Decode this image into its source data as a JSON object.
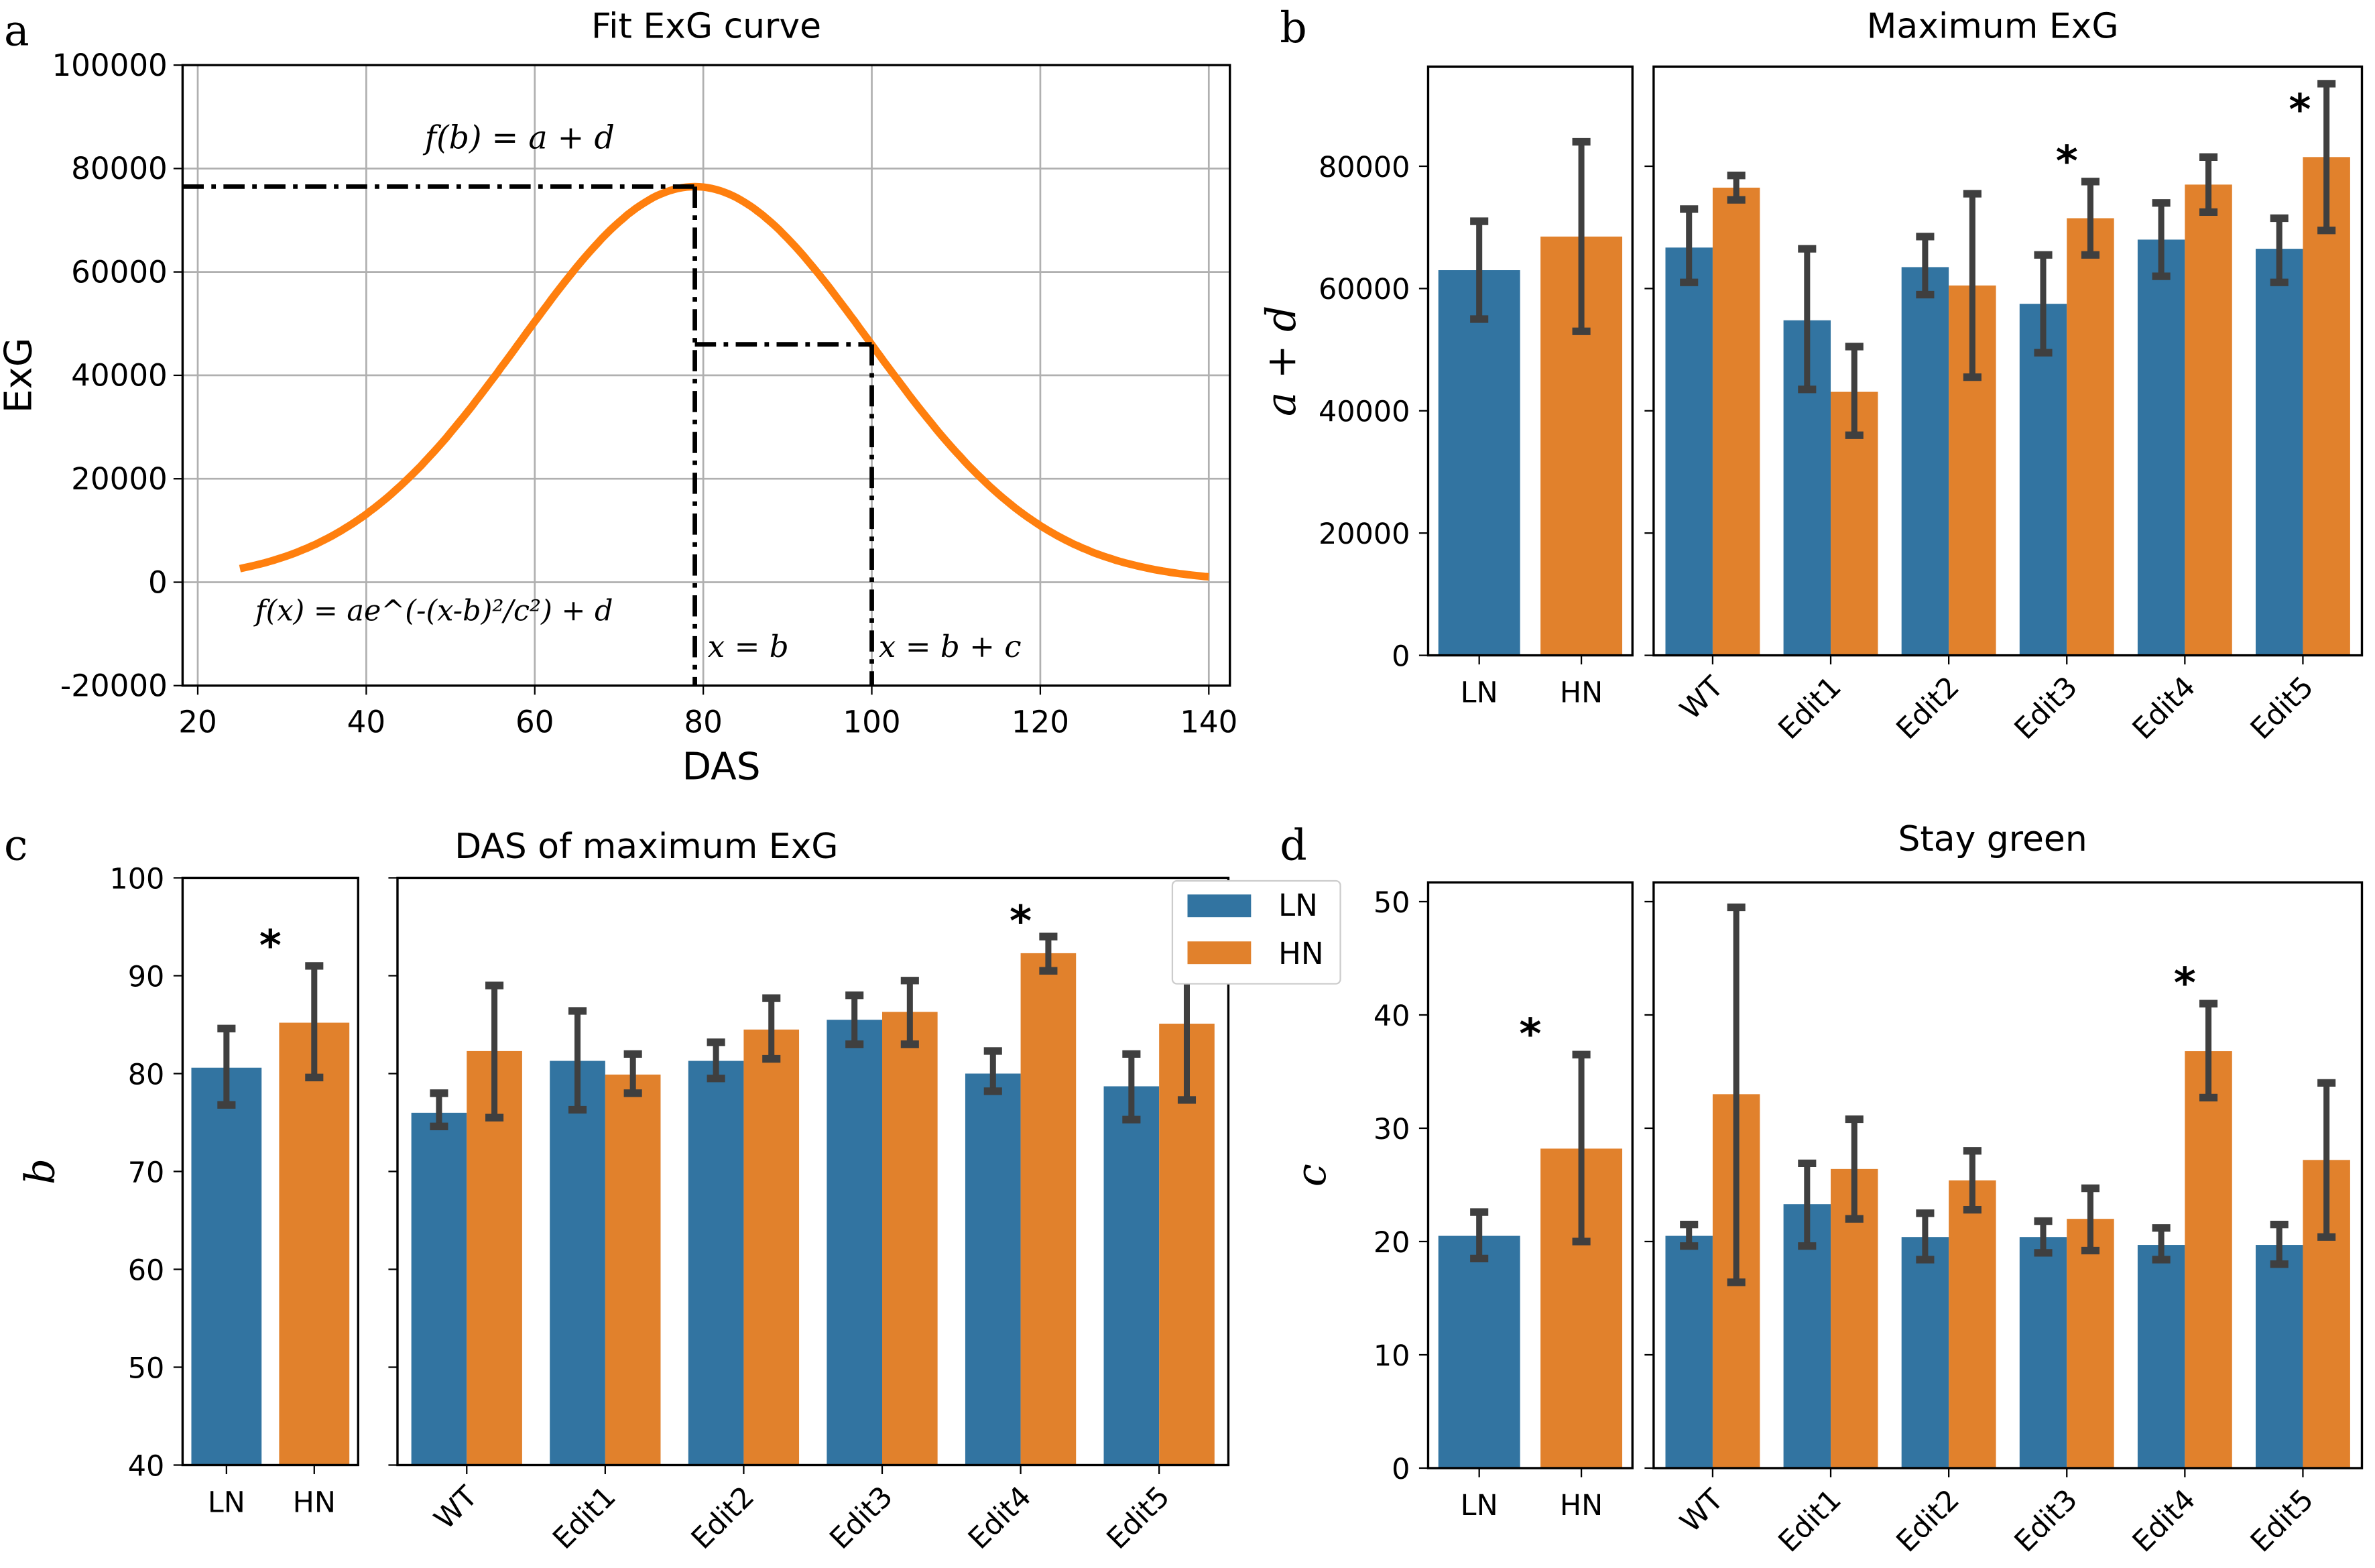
{
  "colors": {
    "LN": "#3274a1",
    "HN": "#e1812c",
    "curve": "#ff7f0e",
    "err": "#3f3f3f",
    "grid": "#b0b0b0"
  },
  "legend": {
    "entries": [
      "LN",
      "HN"
    ]
  },
  "panel_labels": [
    "a",
    "b",
    "c",
    "d"
  ],
  "chart_data": [
    {
      "id": "a",
      "type": "line",
      "title": "Fit ExG curve",
      "xlabel": "DAS",
      "ylabel": "ExG",
      "xlim": [
        18.2,
        142.5
      ],
      "ylim": [
        -20000,
        100000
      ],
      "xticks": [
        20,
        40,
        60,
        80,
        100,
        120,
        140
      ],
      "yticks": [
        -20000,
        0,
        20000,
        40000,
        60000,
        80000,
        100000
      ],
      "grid": true,
      "curve": {
        "model": "gaussian",
        "a": 76500,
        "b": 79,
        "c": 29.4,
        "d": 0,
        "x_range": [
          25,
          140
        ]
      },
      "reference_lines": [
        {
          "x": 79,
          "y": 76500
        },
        {
          "x": 100,
          "y": 46000,
          "x_from": 79
        }
      ],
      "annotations": [
        "f(b) = a + d",
        "f(x) = ae^(-(x-b)²/c²) + d",
        "x = b",
        "x = b + c"
      ]
    },
    {
      "id": "b",
      "type": "bar",
      "title": "Maximum ExG",
      "ylabel": "a + d",
      "ylim": [
        0,
        96300
      ],
      "yticks": [
        0,
        20000,
        40000,
        60000,
        80000
      ],
      "overall": {
        "categories": [
          "LN",
          "HN"
        ],
        "values": [
          63000,
          68500
        ],
        "err": [
          [
            55000,
            71000
          ],
          [
            53000,
            84000
          ]
        ],
        "stars": []
      },
      "groups": {
        "categories": [
          "WT",
          "Edit1",
          "Edit2",
          "Edit3",
          "Edit4",
          "Edit5"
        ],
        "series": [
          {
            "name": "LN",
            "values": [
              66700,
              54800,
              63500,
              57500,
              68000,
              66500
            ],
            "err": [
              [
                61000,
                73000
              ],
              [
                43500,
                66500
              ],
              [
                59000,
                68500
              ],
              [
                49500,
                65500
              ],
              [
                62000,
                74000
              ],
              [
                61000,
                71500
              ]
            ]
          },
          {
            "name": "HN",
            "values": [
              76500,
              43100,
              60500,
              71500,
              77000,
              81500
            ],
            "err": [
              [
                74500,
                78500
              ],
              [
                36000,
                50500
              ],
              [
                45500,
                75500
              ],
              [
                65500,
                77500
              ],
              [
                72500,
                81500
              ],
              [
                69500,
                93500
              ]
            ]
          }
        ],
        "stars": [
          "Edit3",
          "Edit5"
        ]
      }
    },
    {
      "id": "c",
      "type": "bar",
      "title": "DAS of maximum ExG",
      "ylabel": "b",
      "ylim": [
        40,
        100
      ],
      "yticks": [
        40,
        50,
        60,
        70,
        80,
        90,
        100
      ],
      "overall": {
        "categories": [
          "LN",
          "HN"
        ],
        "values": [
          80.6,
          85.2
        ],
        "err": [
          [
            76.8,
            84.6
          ],
          [
            79.6,
            91
          ]
        ],
        "stars": [
          "overall"
        ]
      },
      "groups": {
        "categories": [
          "WT",
          "Edit1",
          "Edit2",
          "Edit3",
          "Edit4",
          "Edit5"
        ],
        "series": [
          {
            "name": "LN",
            "values": [
              76,
              81.3,
              81.3,
              85.5,
              80,
              78.7
            ],
            "err": [
              [
                74.6,
                78
              ],
              [
                76.3,
                86.4
              ],
              [
                79.5,
                83.2
              ],
              [
                83,
                88
              ],
              [
                78.2,
                82.3
              ],
              [
                75.3,
                82
              ]
            ]
          },
          {
            "name": "HN",
            "values": [
              82.3,
              79.9,
              84.5,
              86.3,
              92.3,
              85.1
            ],
            "err": [
              [
                75.5,
                89
              ],
              [
                78,
                82
              ],
              [
                81.5,
                87.7
              ],
              [
                83,
                89.5
              ],
              [
                90.5,
                94
              ],
              [
                77.3,
                92.8
              ]
            ]
          }
        ],
        "stars": [
          "Edit4"
        ]
      }
    },
    {
      "id": "d",
      "type": "bar",
      "title": "Stay green",
      "ylabel": "c",
      "ylim": [
        0,
        51.7
      ],
      "yticks": [
        0,
        10,
        20,
        30,
        40,
        50
      ],
      "overall": {
        "categories": [
          "LN",
          "HN"
        ],
        "values": [
          20.5,
          28.2
        ],
        "err": [
          [
            18.5,
            22.6
          ],
          [
            20,
            36.5
          ]
        ],
        "stars": [
          "overall"
        ]
      },
      "groups": {
        "categories": [
          "WT",
          "Edit1",
          "Edit2",
          "Edit3",
          "Edit4",
          "Edit5"
        ],
        "series": [
          {
            "name": "LN",
            "values": [
              20.5,
              23.3,
              20.4,
              20.4,
              19.7,
              19.7
            ],
            "err": [
              [
                19.6,
                21.5
              ],
              [
                19.6,
                26.9
              ],
              [
                18.4,
                22.5
              ],
              [
                19,
                21.8
              ],
              [
                18.4,
                21.2
              ],
              [
                18,
                21.5
              ]
            ]
          },
          {
            "name": "HN",
            "values": [
              33,
              26.4,
              25.4,
              22,
              36.8,
              27.2
            ],
            "err": [
              [
                16.4,
                49.5
              ],
              [
                22,
                30.8
              ],
              [
                22.8,
                28
              ],
              [
                19.2,
                24.7
              ],
              [
                32.7,
                41
              ],
              [
                20.4,
                34
              ]
            ]
          }
        ],
        "stars": [
          "Edit4"
        ]
      }
    }
  ]
}
